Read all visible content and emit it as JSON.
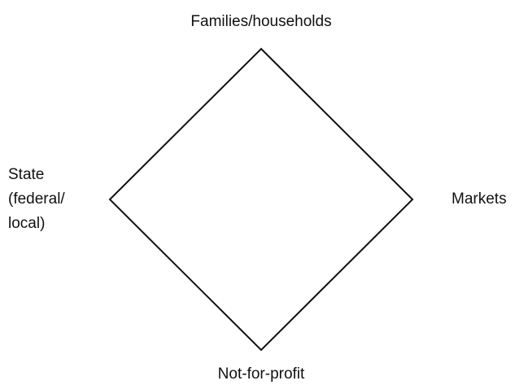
{
  "nodes": [
    {
      "label": "Families/households"
    },
    {
      "label": "Markets"
    },
    {
      "label": "Not-for-profit"
    },
    {
      "label_lines": [
        "State",
        "(federal/",
        "local)"
      ]
    }
  ]
}
